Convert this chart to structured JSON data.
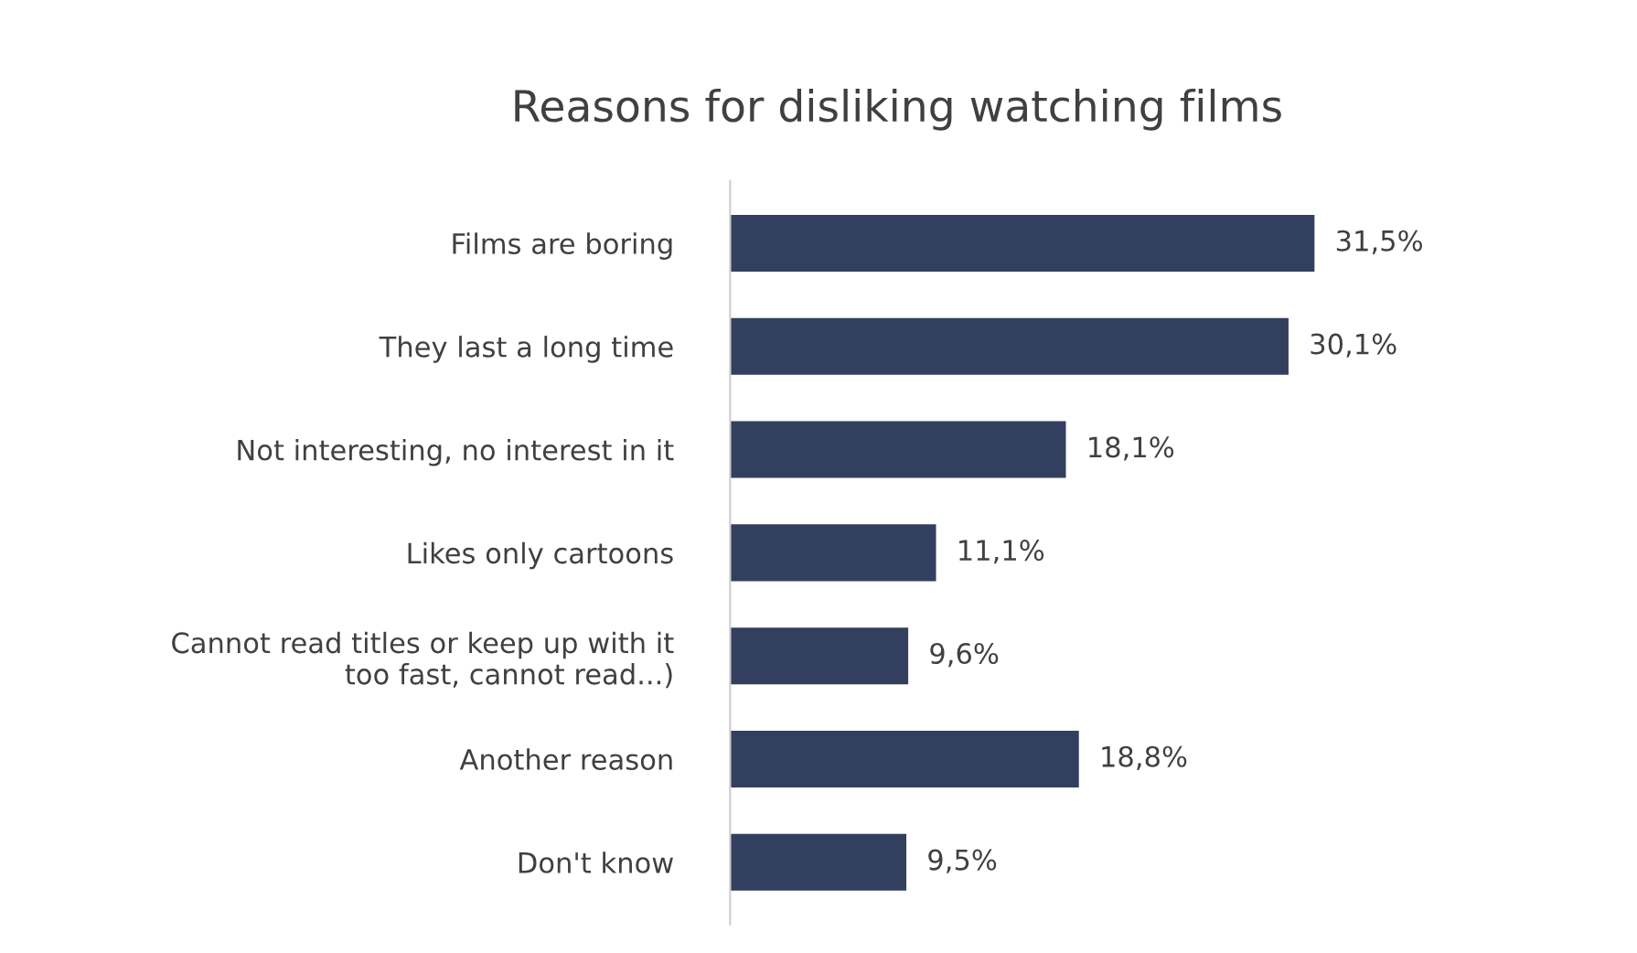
{
  "chart_data": {
    "type": "bar",
    "orientation": "horizontal",
    "title": "Reasons for disliking watching films",
    "categories": [
      "Films are boring",
      "They last a long time",
      "Not interesting, no interest in it",
      "Likes only cartoons",
      "Cannot read titles or keep up with it\ntoo fast, cannot read...)",
      "Another reason",
      "Don't know"
    ],
    "values": [
      31.5,
      30.1,
      18.1,
      11.1,
      9.6,
      18.8,
      9.5
    ],
    "value_labels": [
      "31,5%",
      "30,1%",
      "18,1%",
      "11,1%",
      "9,6%",
      "18,8%",
      "9,5%"
    ],
    "color": "#333f5e",
    "grid": false,
    "legend": false
  }
}
